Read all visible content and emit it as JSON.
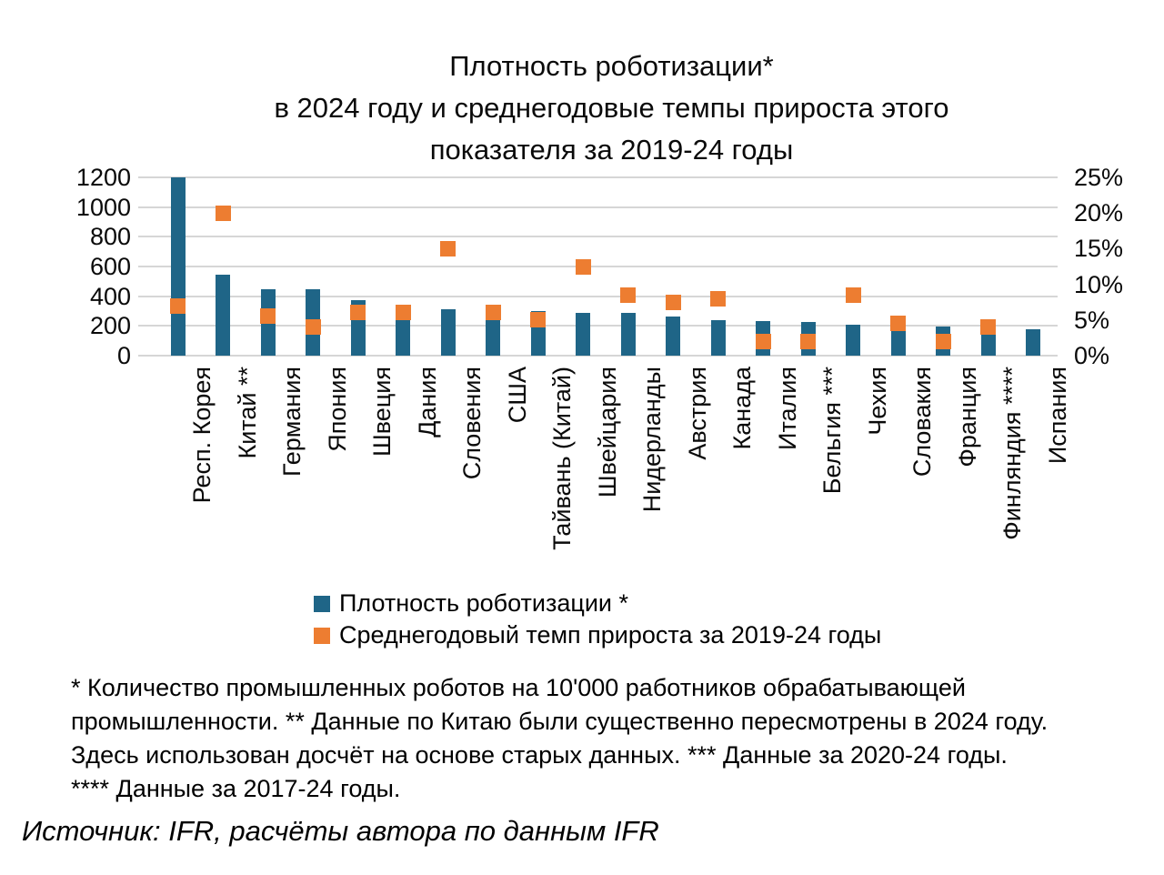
{
  "title": {
    "lines": [
      "Плотность роботизации*",
      "в 2024 году и среднегодовые темпы прироста этого",
      "показателя за 2019-24 годы"
    ]
  },
  "legend": [
    {
      "label": "Плотность роботизации *",
      "color": "#1F6587",
      "marker": "square"
    },
    {
      "label": "Среднегодовый темп прироста за 2019-24 годы",
      "color": "#ED7D31",
      "marker": "square"
    }
  ],
  "footnotes": {
    "lines": [
      "* Количество промышленных роботов на 10'000 работников обрабатывающей",
      "промышленности. ** Данные по Китаю были существенно пересмотрены в 2024 году.",
      "Здесь использован досчёт на основе старых данных. *** Данные за 2020-24 годы.",
      "**** Данные за 2017-24 годы."
    ]
  },
  "source": {
    "text": "Источник: IFR, расчёты автора по данным IFR"
  },
  "colors": {
    "bar": "#1F6587",
    "marker": "#ED7D31",
    "gridline": "#D6D6D6",
    "text": "#000000"
  },
  "chart_data": {
    "type": "bar",
    "title": "Плотность роботизации* в 2024 году и среднегодовые темпы прироста этого показателя за 2019-24 годы",
    "grid": true,
    "legend_position": "bottom",
    "categories": [
      "Респ. Корея",
      "Китай **",
      "Германия",
      "Япония",
      "Швеция",
      "Дания",
      "Словения",
      "США",
      "Тайвань (Китай)",
      "Швейцария",
      "Нидерланды",
      "Австрия",
      "Канада",
      "Италия",
      "Бельгия ***",
      "Чехия",
      "Словакия",
      "Франция",
      "Финляндия ****",
      "Испания"
    ],
    "series": [
      {
        "name": "Плотность роботизации *",
        "type": "bar",
        "axis": "left",
        "color": "#1F6587",
        "values": [
          1200,
          545,
          450,
          445,
          375,
          340,
          315,
          310,
          300,
          290,
          285,
          265,
          240,
          235,
          225,
          210,
          200,
          195,
          190,
          180
        ]
      },
      {
        "name": "Среднегодовый темп прироста за 2019-24 годы",
        "type": "scatter",
        "marker": "square",
        "axis": "right",
        "color": "#ED7D31",
        "values": [
          7,
          20,
          5.5,
          4,
          6,
          6,
          15,
          6,
          5,
          12.5,
          8.5,
          7.5,
          8,
          2,
          2,
          8.5,
          4.5,
          2,
          4,
          null
        ]
      }
    ],
    "left_axis": {
      "min": 0,
      "max": 1200,
      "tick_step": 200,
      "tick_labels": [
        "0",
        "200",
        "400",
        "600",
        "800",
        "1000",
        "1200"
      ]
    },
    "right_axis": {
      "min": 0,
      "max": 25,
      "tick_step": 5,
      "unit": "%",
      "tick_labels": [
        "0%",
        "5%",
        "10%",
        "15%",
        "20%",
        "25%"
      ]
    }
  }
}
